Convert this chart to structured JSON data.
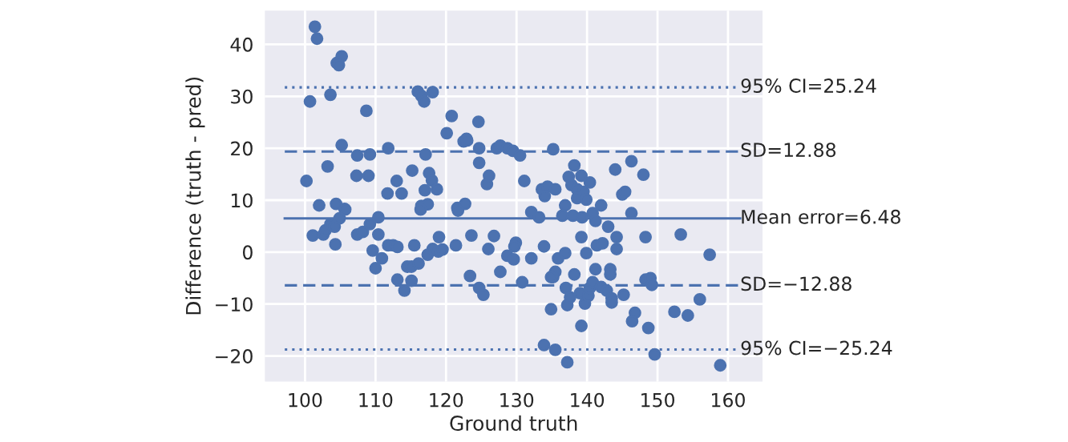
{
  "chart_data": {
    "type": "scatter",
    "xlabel": "Ground truth",
    "ylabel": "Difference (truth - pred)",
    "xlim": [
      94.3,
      164.9
    ],
    "ylim": [
      -24.9,
      46.5
    ],
    "xticks": [
      100,
      110,
      120,
      130,
      140,
      150,
      160
    ],
    "yticks": [
      -20,
      -10,
      0,
      10,
      20,
      30,
      40
    ],
    "grid": true,
    "marker": "circle",
    "series": [
      {
        "color": "#4c72b0",
        "x": [
          101.4,
          101.7,
          100.7,
          100.2,
          103.6,
          104.5,
          105.2,
          104.8,
          105.2,
          103.2,
          102.0,
          104.4,
          105.6,
          107.4,
          107.3,
          108.7,
          109.0,
          109.2,
          111.8,
          111.7,
          113.0,
          113.7,
          115.2,
          116.0,
          116.5,
          116.9,
          118.1,
          117.1,
          117.6,
          118.0,
          118.7,
          117.0,
          116.5,
          117.4,
          120.1,
          120.8,
          121.6,
          122.7,
          122.5,
          122.9,
          124.6,
          124.7,
          124.7,
          125.8,
          101.1,
          102.6,
          102.9,
          103.6,
          104.2,
          104.9,
          104.3,
          105.7,
          107.4,
          108.2,
          109.2,
          110.4,
          110.4,
          109.6,
          110.0,
          110.9,
          111.8,
          112.5,
          113.1,
          113.1,
          114.1,
          114.5,
          115.1,
          115.1,
          115.5,
          116.1,
          116.4,
          117.4,
          118.1,
          118.9,
          119.0,
          119.5,
          121.4,
          121.7,
          123.6,
          123.4,
          124.7,
          125.3,
          126.0,
          123.0,
          126.1,
          127.2,
          127.7,
          128.7,
          129.5,
          130.5,
          131.1,
          135.2,
          133.6,
          134.4,
          134.0,
          135.5,
          137.4,
          138.2,
          139.2,
          137.8,
          138.6,
          139.5,
          140.4,
          138.6,
          139.9,
          136.9,
          142.0,
          144.0,
          146.3,
          148.0,
          145.0,
          145.4,
          146.3,
          132.1,
          133.2,
          136.5,
          138.0,
          139.3,
          140.8,
          141.2,
          126.8,
          129.9,
          129.7,
          128.7,
          129.6,
          132.1,
          133.9,
          135.9,
          136.9,
          139.2,
          139.9,
          141.4,
          142.2,
          143.0,
          144.2,
          144.2,
          148.3,
          153.3,
          157.4,
          127.7,
          130.8,
          135.5,
          135.2,
          134.9,
          138.2,
          137.0,
          139.0,
          137.2,
          137.6,
          139.7,
          140.2,
          140.4,
          140.8,
          141.2,
          142.0,
          142.8,
          143.3,
          143.3,
          143.5,
          143.5,
          145.2,
          146.8,
          146.4,
          148.7,
          148.3,
          149.0,
          149.2,
          152.4,
          154.3,
          156.0,
          134.9,
          139.2,
          133.9,
          135.5,
          137.2,
          149.6,
          158.9
        ],
        "values": [
          43.4,
          41.1,
          29.0,
          13.7,
          30.3,
          36.4,
          37.7,
          36.0,
          20.6,
          16.5,
          9.0,
          9.3,
          8.3,
          18.6,
          14.7,
          27.2,
          14.7,
          18.8,
          20.0,
          11.3,
          13.7,
          11.3,
          15.7,
          30.9,
          30.1,
          29.0,
          30.8,
          18.8,
          15.2,
          13.8,
          12.1,
          11.9,
          8.9,
          9.2,
          22.9,
          26.2,
          8.5,
          9.3,
          21.3,
          21.8,
          25.1,
          20.0,
          17.2,
          13.1,
          3.2,
          3.4,
          4.2,
          5.4,
          4.9,
          6.5,
          1.5,
          8.2,
          3.4,
          3.9,
          5.4,
          6.7,
          3.4,
          0.3,
          -3.1,
          -1.2,
          1.3,
          1.3,
          1.0,
          -5.3,
          -7.4,
          -2.8,
          -2.8,
          -5.5,
          1.3,
          -2.2,
          8.2,
          -0.5,
          0.6,
          0.1,
          2.9,
          0.5,
          1.3,
          8.0,
          3.2,
          -4.6,
          -6.9,
          -8.2,
          0.6,
          21.5,
          14.7,
          20.0,
          20.5,
          20.0,
          19.5,
          18.6,
          13.7,
          19.8,
          12.1,
          12.6,
          10.8,
          12.1,
          14.5,
          16.7,
          14.7,
          12.9,
          12.1,
          11.6,
          13.4,
          10.4,
          10.1,
          9.0,
          9.0,
          15.9,
          17.5,
          14.9,
          11.1,
          11.6,
          7.5,
          7.7,
          6.7,
          7.0,
          7.0,
          6.7,
          7.5,
          6.0,
          3.1,
          1.8,
          1.1,
          -0.7,
          -1.4,
          -1.2,
          1.1,
          -1.2,
          -0.2,
          2.9,
          -0.2,
          1.3,
          1.7,
          4.9,
          2.9,
          0.6,
          2.9,
          3.4,
          -0.5,
          -3.8,
          -5.8,
          -3.8,
          -4.8,
          -4.8,
          -4.3,
          -6.9,
          -7.9,
          -10.2,
          -8.7,
          -9.9,
          -8.4,
          -6.9,
          -5.8,
          -3.3,
          -6.7,
          -7.4,
          -3.3,
          -4.3,
          -8.9,
          -9.7,
          -8.2,
          -11.7,
          -13.3,
          -14.6,
          -5.3,
          -5.0,
          -6.3,
          -11.5,
          -12.2,
          -9.1,
          -11.0,
          -14.2,
          -17.9,
          -18.8,
          -21.2,
          -19.7,
          -21.8
        ]
      }
    ],
    "ref_lines": [
      {
        "axis": "y",
        "value": 31.72,
        "line_style": "dotted",
        "color": "#4c72b0"
      },
      {
        "axis": "y",
        "value": 19.36,
        "line_style": "dashed",
        "color": "#4c72b0"
      },
      {
        "axis": "y",
        "value": 6.48,
        "label": "Mean error=6.48",
        "line_style": "solid",
        "color": "#4c72b0"
      },
      {
        "axis": "y",
        "value": -6.4,
        "line_style": "dashed",
        "color": "#4c72b0"
      },
      {
        "axis": "y",
        "value": -18.76,
        "line_style": "dotted",
        "color": "#4c72b0"
      }
    ],
    "annotations": [
      "95% CI=25.24",
      "SD=12.88",
      "SD=−12.88",
      "95% CI=−25.24"
    ]
  }
}
